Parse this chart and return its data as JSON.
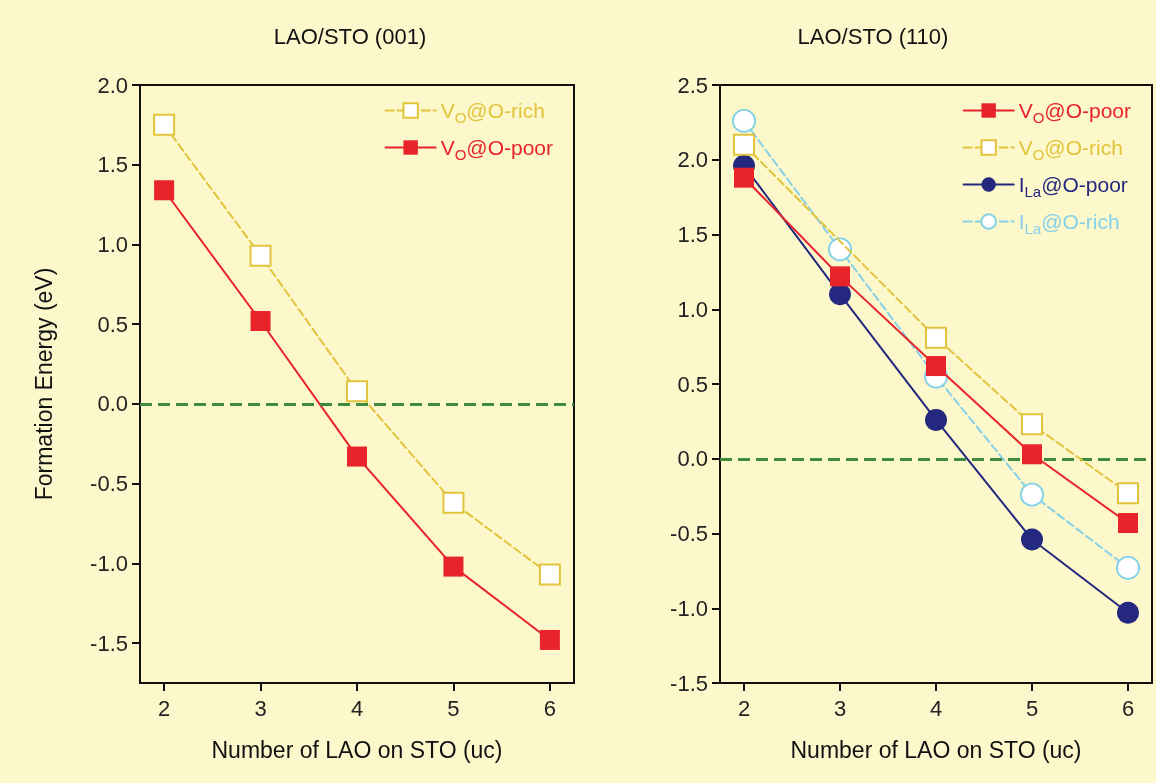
{
  "chart_data": [
    {
      "type": "line",
      "title": "LAO/STO (001)",
      "xlabel": "Number of LAO on STO (uc)",
      "ylabel": "Formation Energy (eV)",
      "x": [
        2,
        3,
        4,
        5,
        6
      ],
      "xlim": [
        1.75,
        6.25
      ],
      "xticks": [
        2,
        3,
        4,
        5,
        6
      ],
      "ylim": [
        -1.75,
        2.0
      ],
      "yticks": [
        -1.5,
        {
          "value": -1,
          "label": "-1.0"
        },
        -0.5,
        {
          "value": 0,
          "label": "0.0"
        },
        0.5,
        {
          "value": 1,
          "label": "1.0"
        },
        1.5,
        {
          "value": 2,
          "label": "2.0"
        }
      ],
      "series": [
        {
          "name": "V$_{O}$@O-rich",
          "color": "#e2c43c",
          "marker": "square",
          "line_style": "dashed",
          "values": [
            1.75,
            0.93,
            0.08,
            -0.62,
            -1.07
          ]
        },
        {
          "name": "V$_{O}$@O-poor",
          "color": "#e8232a",
          "marker": "square",
          "line_style": "solid",
          "values": [
            1.34,
            0.52,
            -0.33,
            -1.02,
            -1.48
          ]
        }
      ],
      "ref_lines": [
        {
          "axis": "y",
          "value": 0,
          "color": "#3d8c3d",
          "line_style": "dashed"
        }
      ],
      "legend": "top right",
      "grid": false
    },
    {
      "type": "line",
      "title": "LAO/STO (110)",
      "xlabel": "Number of LAO on STO (uc)",
      "x": [
        2,
        3,
        4,
        5,
        6
      ],
      "xlim": [
        1.75,
        6.25
      ],
      "xticks": [
        2,
        3,
        4,
        5,
        6
      ],
      "ylim": [
        -1.5,
        2.5
      ],
      "yticks": [
        -1.5,
        {
          "value": -1,
          "label": "-1.0"
        },
        -0.5,
        {
          "value": 0,
          "label": "0.0"
        },
        0.5,
        {
          "value": 1,
          "label": "1.0"
        },
        1.5,
        {
          "value": 2,
          "label": "2.0"
        },
        2.5
      ],
      "series": [
        {
          "name": "V$_{O}$@O-poor",
          "color": "#e8232a",
          "marker": "square",
          "line_style": "solid",
          "values": [
            1.88,
            1.22,
            0.62,
            0.03,
            -0.43
          ]
        },
        {
          "name": "V$_{O}$@O-rich",
          "color": "#e2c43c",
          "marker": "square",
          "line_style": "dashed",
          "values": [
            2.1,
            null,
            0.81,
            0.23,
            -0.23
          ]
        },
        {
          "name": "I$_{La}$@O-poor",
          "color": "#24287e",
          "marker": "circle",
          "line_style": "solid",
          "values": [
            1.96,
            1.1,
            0.26,
            -0.54,
            -1.03
          ]
        },
        {
          "name": "I$_{La}$@O-rich",
          "color": "#86d0e8",
          "marker": "circle",
          "line_style": "dashed",
          "values": [
            2.26,
            1.4,
            0.55,
            -0.24,
            -0.73
          ]
        }
      ],
      "ref_lines": [
        {
          "axis": "y",
          "value": 0,
          "color": "#3d8c3d",
          "line_style": "dashed"
        }
      ],
      "legend": "top right",
      "grid": false
    }
  ]
}
